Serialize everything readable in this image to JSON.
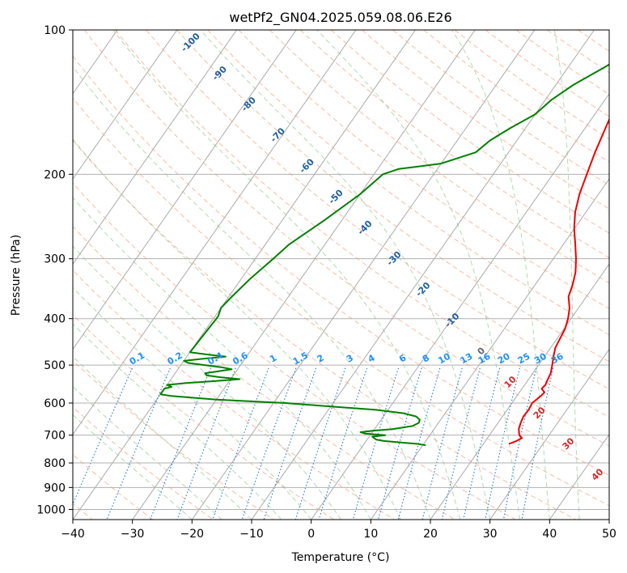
{
  "chart_data": {
    "type": "line",
    "title": "wetPf2_GN04.2025.059.08.06.E26",
    "xlabel": "Temperature (°C)",
    "ylabel": "Pressure (hPa)",
    "xlim": [
      -40,
      50
    ],
    "ylim": [
      1050,
      100
    ],
    "y_scale": "log",
    "grid": true,
    "x_ticks": [
      -40,
      -30,
      -20,
      -10,
      0,
      10,
      20,
      30,
      40,
      50
    ],
    "y_ticks": [
      100,
      200,
      300,
      400,
      500,
      600,
      700,
      800,
      900,
      1000
    ],
    "series": [
      {
        "role": "temperature",
        "color": "#ee0000",
        "pressure": [
          100,
          110,
          120,
          130,
          140,
          150,
          160,
          180,
          200,
          220,
          240,
          260,
          280,
          300,
          320,
          340,
          360,
          380,
          400,
          420,
          440,
          460,
          480,
          500,
          520,
          540,
          550,
          560,
          570,
          580,
          600,
          620,
          640,
          660,
          680,
          700,
          710,
          720,
          730
        ],
        "values": [
          1.5,
          1.0,
          0.8,
          1.3,
          2.0,
          2.8,
          3.4,
          4.5,
          5.7,
          6.8,
          8.2,
          10.0,
          12.0,
          13.8,
          15.3,
          16.3,
          17.0,
          18.5,
          19.5,
          20.2,
          20.5,
          20.8,
          21.5,
          22.3,
          23.0,
          23.3,
          23.5,
          23.3,
          24.2,
          24.0,
          23.4,
          23.6,
          23.5,
          23.8,
          24.2,
          25.0,
          25.8,
          25.2,
          24.3
        ]
      },
      {
        "role": "dewpoint",
        "color": "#008000",
        "pressure": [
          100,
          110,
          120,
          130,
          140,
          150,
          160,
          170,
          180,
          190,
          195,
          200,
          220,
          250,
          280,
          300,
          330,
          360,
          380,
          395,
          400,
          470,
          475,
          480,
          485,
          490,
          495,
          500,
          505,
          510,
          515,
          520,
          525,
          530,
          535,
          540,
          545,
          550,
          555,
          560,
          565,
          570,
          575,
          580,
          590,
          600,
          610,
          620,
          630,
          640,
          650,
          660,
          670,
          680,
          685,
          690,
          695,
          700,
          705,
          710,
          715,
          720,
          725,
          730,
          735
        ],
        "values": [
          0.0,
          -1.0,
          -4.0,
          -7.0,
          -9.0,
          -10.0,
          -12.5,
          -14.5,
          -15.5,
          -20.0,
          -26.5,
          -28.5,
          -30.0,
          -33.0,
          -36.0,
          -37.0,
          -38.5,
          -39.5,
          -40.0,
          -39.5,
          -39.5,
          -40.0,
          -37.0,
          -33.5,
          -37.0,
          -40.0,
          -39.0,
          -36.0,
          -33.0,
          -31.0,
          -33.0,
          -35.0,
          -34.5,
          -32.0,
          -28.5,
          -32.5,
          -37.0,
          -40.0,
          -39.0,
          -40.0,
          -40.0,
          -40.0,
          -40.0,
          -38.0,
          -30.0,
          -18.0,
          -10.0,
          -2.0,
          3.0,
          5.5,
          6.5,
          6.7,
          6.0,
          3.0,
          0.0,
          -2.0,
          -1.0,
          2.5,
          0.5,
          1.0,
          1.5,
          3.0,
          6.0,
          9.0,
          10.5
        ]
      }
    ],
    "dry_adiabat_labels": [
      "-100",
      "-90",
      "-80",
      "-70",
      "-60",
      "-50",
      "-40",
      "-30",
      "-20",
      "-10",
      "0",
      "10",
      "20",
      "30",
      "40"
    ],
    "mixing_ratio_labels": [
      "0.1",
      "0.2",
      "0.4",
      "0.6",
      "1",
      "1.5",
      "2",
      "3",
      "4",
      "6",
      "8",
      "10",
      "13",
      "16",
      "20",
      "25",
      "30",
      "36"
    ],
    "colors": {
      "isotherm": "#aaaaaa",
      "dry_adiabat": "#f4a582",
      "moist_adiabat": "#7fbf7b",
      "mixing_ratio": "#1f78d4",
      "dry_label": "#1f5f9f",
      "warm_label": "#d62728",
      "mixing_label": "#1e90ff"
    }
  }
}
